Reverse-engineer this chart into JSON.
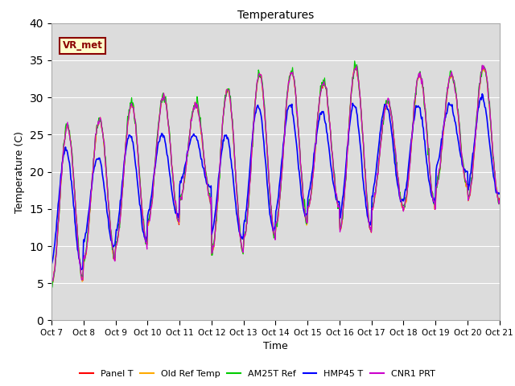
{
  "title": "Temperatures",
  "xlabel": "Time",
  "ylabel": "Temperature (C)",
  "ylim": [
    0,
    40
  ],
  "yticks": [
    0,
    5,
    10,
    15,
    20,
    25,
    30,
    35,
    40
  ],
  "series_names": [
    "Panel T",
    "Old Ref Temp",
    "AM25T Ref",
    "HMP45 T",
    "CNR1 PRT"
  ],
  "series_colors": [
    "#ff0000",
    "#ffaa00",
    "#00cc00",
    "#0000ff",
    "#cc00cc"
  ],
  "annotation_text": "VR_met",
  "annotation_box_color": "#ffffcc",
  "annotation_border_color": "#8B0000",
  "background_color": "#dcdcdc",
  "n_days": 14,
  "pts_per_day": 48,
  "daily_peaks": [
    26,
    27,
    29,
    30,
    29,
    31,
    33,
    33.5,
    32,
    34,
    29.5,
    33,
    33,
    34
  ],
  "daily_mins": [
    5,
    8,
    10,
    13,
    16,
    9,
    11,
    13,
    15,
    12,
    15,
    15,
    18,
    16
  ],
  "hmp45_peaks": [
    23,
    22,
    25,
    25,
    25,
    25,
    29,
    29,
    28,
    29,
    29,
    29,
    29,
    30
  ],
  "hmp45_mins": [
    7,
    10,
    11,
    14,
    18,
    11,
    12,
    14,
    16,
    13,
    16,
    16,
    20,
    17
  ],
  "x_tick_labels": [
    "Oct 7",
    "Oct 8",
    "Oct 9",
    "Oct 10",
    "Oct 11",
    "Oct 12",
    "Oct 13",
    "Oct 14",
    "Oct 15",
    "Oct 16",
    "Oct 17",
    "Oct 18",
    "Oct 19",
    "Oct 20",
    "Oct 21"
  ]
}
